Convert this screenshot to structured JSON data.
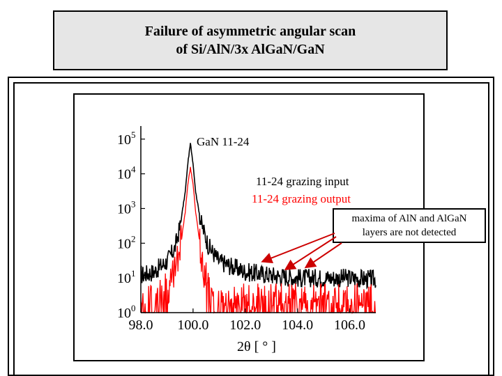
{
  "slide": {
    "title_line1": "Failure of asymmetric angular scan",
    "title_line2": "of Si/AlN/3x AlGaN/GaN",
    "annotation_line1": "maxima of AlN and AlGaN",
    "annotation_line2": "layers are not detected"
  },
  "colors": {
    "black_series": "#000000",
    "red_series": "#ff0000",
    "arrow": "#cc0000",
    "title_background": "#e6e6e6"
  },
  "chart_data": {
    "type": "line",
    "xlabel": "2θ [ ° ]",
    "x_ticks": [
      "98.0",
      "100.0",
      "102.0",
      "104.0",
      "106.0"
    ],
    "x_tick_values": [
      98,
      100,
      102,
      104,
      106
    ],
    "xlim": [
      98,
      107
    ],
    "y_scale": "log",
    "ylim": [
      1,
      150000
    ],
    "y_ticks": [
      {
        "base": "10",
        "exp": "0",
        "value": 1
      },
      {
        "base": "10",
        "exp": "1",
        "value": 10
      },
      {
        "base": "10",
        "exp": "2",
        "value": 100
      },
      {
        "base": "10",
        "exp": "3",
        "value": 1000
      },
      {
        "base": "10",
        "exp": "4",
        "value": 10000
      },
      {
        "base": "10",
        "exp": "5",
        "value": 100000
      }
    ],
    "peak_label": "GaN 11-24",
    "series": [
      {
        "name": "11-24 grazing input",
        "color": "#000000",
        "peak": {
          "x": 99.9,
          "y": 75000
        },
        "points": [
          [
            98.0,
            12
          ],
          [
            98.5,
            15
          ],
          [
            99.0,
            30
          ],
          [
            99.3,
            70
          ],
          [
            99.5,
            300
          ],
          [
            99.7,
            3000
          ],
          [
            99.8,
            20000
          ],
          [
            99.9,
            75000
          ],
          [
            100.0,
            20000
          ],
          [
            100.1,
            3000
          ],
          [
            100.3,
            400
          ],
          [
            100.6,
            80
          ],
          [
            101.0,
            30
          ],
          [
            102.0,
            15
          ],
          [
            103.0,
            12
          ],
          [
            104.0,
            10
          ],
          [
            105.0,
            10
          ],
          [
            106.0,
            10
          ],
          [
            107.0,
            9
          ]
        ],
        "noise_level": 10
      },
      {
        "name": "11-24 grazing output",
        "color": "#ff0000",
        "peak": {
          "x": 99.9,
          "y": 15000
        },
        "points": [
          [
            98.0,
            2
          ],
          [
            98.7,
            3
          ],
          [
            99.2,
            8
          ],
          [
            99.5,
            60
          ],
          [
            99.7,
            800
          ],
          [
            99.8,
            5000
          ],
          [
            99.9,
            15000
          ],
          [
            100.0,
            5000
          ],
          [
            100.1,
            800
          ],
          [
            100.3,
            60
          ],
          [
            100.5,
            8
          ],
          [
            100.8,
            2
          ],
          [
            102.0,
            2
          ],
          [
            104.0,
            2
          ],
          [
            106.0,
            2
          ],
          [
            107.0,
            2
          ]
        ],
        "noise_level": 2
      }
    ]
  }
}
